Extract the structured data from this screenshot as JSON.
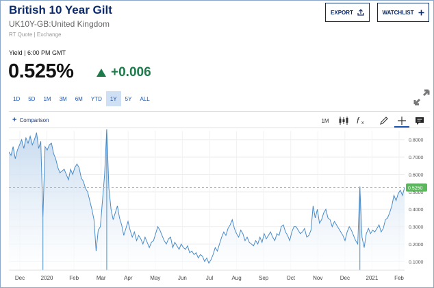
{
  "header": {
    "title": "British 10 Year Gilt",
    "symbol": "UK10Y-GB:United Kingdom",
    "source": "RT Quote | Exchange",
    "export_label": "EXPORT",
    "watchlist_label": "WATCHLIST"
  },
  "quote": {
    "yield_label": "Yield | 6:00 PM GMT",
    "price": "0.525%",
    "change": "+0.006",
    "change_color": "#1d7a4a"
  },
  "ranges": [
    {
      "label": "1D",
      "active": false
    },
    {
      "label": "5D",
      "active": false
    },
    {
      "label": "1M",
      "active": false
    },
    {
      "label": "3M",
      "active": false
    },
    {
      "label": "6M",
      "active": false
    },
    {
      "label": "YTD",
      "active": false
    },
    {
      "label": "1Y",
      "active": true
    },
    {
      "label": "5Y",
      "active": false
    },
    {
      "label": "ALL",
      "active": false
    }
  ],
  "toolbar": {
    "comparison_label": "Comparison",
    "interval_label": "1M",
    "icons": [
      "candlestick-icon",
      "function-icon",
      "pencil-icon",
      "crosshair-icon",
      "comment-icon"
    ]
  },
  "chart_data": {
    "type": "area",
    "x_tick_labels": [
      "Dec",
      "2020",
      "Feb",
      "Mar",
      "Apr",
      "May",
      "Jun",
      "Jul",
      "Aug",
      "Sep",
      "Oct",
      "Nov",
      "Dec",
      "2021",
      "Feb"
    ],
    "y_tick_labels": [
      "0.8000",
      "0.7000",
      "0.6000",
      "0.5000",
      "0.4000",
      "0.3000",
      "0.2000",
      "0.1000"
    ],
    "y_ticks": [
      0.8,
      0.7,
      0.6,
      0.5,
      0.4,
      0.3,
      0.2,
      0.1
    ],
    "ylim": [
      0.05,
      0.85
    ],
    "last_value_label": "0.5250",
    "last_value": 0.525,
    "line_color": "#4a8cc8",
    "fill_color": "#c3d8ee",
    "tag_color": "#5cb85c",
    "series": [
      {
        "values": [
          0.73,
          0.71,
          0.76,
          0.69,
          0.74,
          0.77,
          0.8,
          0.75,
          0.81,
          0.78,
          0.82,
          0.77,
          0.8,
          0.84,
          0.75,
          0.79,
          0.35,
          0.76,
          0.74,
          0.77,
          0.78,
          0.72,
          0.69,
          0.64,
          0.61,
          0.62,
          0.63,
          0.6,
          0.57,
          0.63,
          0.6,
          0.64,
          0.66,
          0.64,
          0.58,
          0.56,
          0.52,
          0.5,
          0.45,
          0.4,
          0.34,
          0.16,
          0.28,
          0.3,
          0.45,
          0.6,
          0.86,
          0.52,
          0.4,
          0.34,
          0.38,
          0.42,
          0.35,
          0.31,
          0.25,
          0.29,
          0.33,
          0.28,
          0.24,
          0.27,
          0.22,
          0.25,
          0.23,
          0.2,
          0.24,
          0.21,
          0.18,
          0.21,
          0.22,
          0.26,
          0.3,
          0.28,
          0.25,
          0.22,
          0.2,
          0.23,
          0.24,
          0.18,
          0.21,
          0.19,
          0.17,
          0.2,
          0.18,
          0.17,
          0.19,
          0.15,
          0.16,
          0.14,
          0.15,
          0.12,
          0.14,
          0.13,
          0.1,
          0.12,
          0.09,
          0.11,
          0.14,
          0.18,
          0.16,
          0.2,
          0.24,
          0.27,
          0.25,
          0.29,
          0.31,
          0.34,
          0.29,
          0.26,
          0.24,
          0.28,
          0.26,
          0.22,
          0.24,
          0.21,
          0.2,
          0.19,
          0.22,
          0.2,
          0.24,
          0.21,
          0.26,
          0.23,
          0.25,
          0.27,
          0.24,
          0.22,
          0.26,
          0.25,
          0.3,
          0.31,
          0.27,
          0.25,
          0.22,
          0.27,
          0.3,
          0.3,
          0.28,
          0.26,
          0.27,
          0.29,
          0.24,
          0.25,
          0.28,
          0.42,
          0.35,
          0.4,
          0.32,
          0.34,
          0.38,
          0.4,
          0.35,
          0.34,
          0.3,
          0.33,
          0.31,
          0.29,
          0.27,
          0.25,
          0.22,
          0.27,
          0.3,
          0.28,
          0.25,
          0.22,
          0.2,
          0.53,
          0.24,
          0.18,
          0.26,
          0.29,
          0.26,
          0.28,
          0.27,
          0.29,
          0.31,
          0.27,
          0.29,
          0.34,
          0.35,
          0.38,
          0.42,
          0.48,
          0.45,
          0.49,
          0.51,
          0.48,
          0.525
        ]
      }
    ],
    "spikes": [
      {
        "index": 16,
        "value": 0.35
      },
      {
        "index": 46,
        "value": 0.86
      },
      {
        "index": 165,
        "value": 0.53
      }
    ]
  }
}
